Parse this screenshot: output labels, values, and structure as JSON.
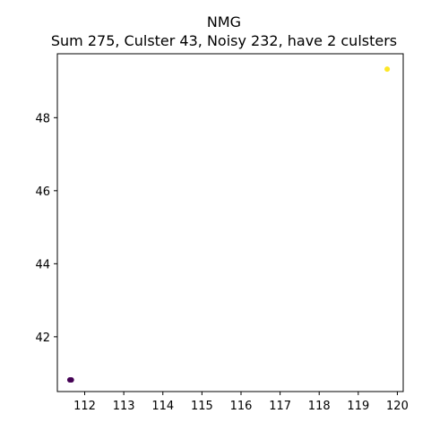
{
  "chart_data": {
    "type": "scatter",
    "title": "NMG",
    "subtitle": "Sum 275, Culster 43, Noisy 232, have 2 culsters",
    "xlabel": "",
    "ylabel": "",
    "xlim": [
      111.3,
      120.15
    ],
    "ylim": [
      40.5,
      49.75
    ],
    "x_ticks": [
      112,
      113,
      114,
      115,
      116,
      117,
      118,
      119,
      120
    ],
    "y_ticks": [
      42,
      44,
      46,
      48
    ],
    "grid": false,
    "series": [
      {
        "color": "#440154",
        "points": [
          {
            "x": 111.62,
            "y": 40.82
          },
          {
            "x": 111.66,
            "y": 40.82
          }
        ]
      },
      {
        "color": "#fde725",
        "points": [
          {
            "x": 119.74,
            "y": 49.33
          }
        ]
      }
    ]
  }
}
